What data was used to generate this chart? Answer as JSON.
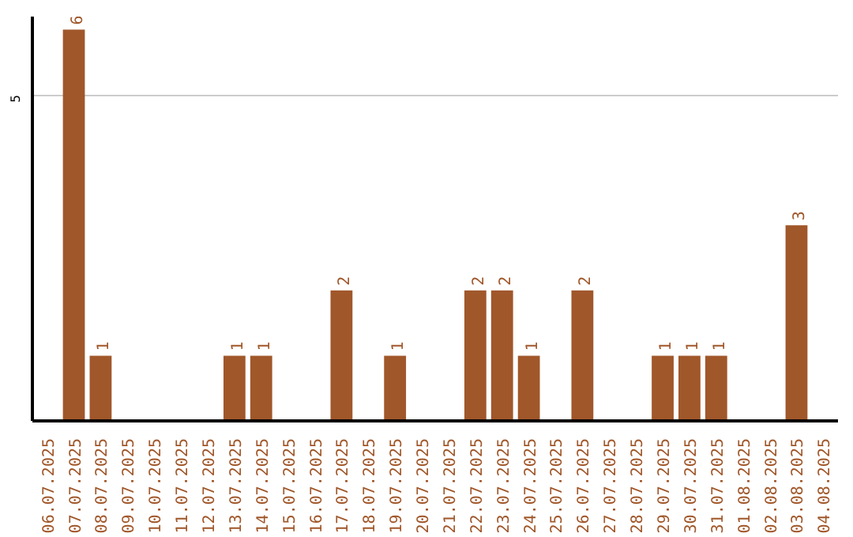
{
  "chart_data": {
    "type": "bar",
    "categories": [
      "06.07.2025",
      "07.07.2025",
      "08.07.2025",
      "09.07.2025",
      "10.07.2025",
      "11.07.2025",
      "12.07.2025",
      "13.07.2025",
      "14.07.2025",
      "15.07.2025",
      "16.07.2025",
      "17.07.2025",
      "18.07.2025",
      "19.07.2025",
      "20.07.2025",
      "21.07.2025",
      "22.07.2025",
      "23.07.2025",
      "24.07.2025",
      "25.07.2025",
      "26.07.2025",
      "27.07.2025",
      "28.07.2025",
      "29.07.2025",
      "30.07.2025",
      "31.07.2025",
      "01.08.2025",
      "02.08.2025",
      "03.08.2025",
      "04.08.2025"
    ],
    "values": [
      0,
      6,
      1,
      0,
      0,
      0,
      0,
      1,
      1,
      0,
      0,
      2,
      0,
      1,
      0,
      0,
      2,
      2,
      1,
      0,
      2,
      0,
      0,
      1,
      1,
      1,
      0,
      0,
      3,
      0
    ],
    "value_labels": [
      null,
      "6",
      "1",
      null,
      null,
      null,
      null,
      "1",
      "1",
      null,
      null,
      "2",
      null,
      "1",
      null,
      null,
      "2",
      "2",
      "1",
      null,
      "2",
      null,
      null,
      "1",
      "1",
      "1",
      null,
      null,
      "3",
      null
    ],
    "color": "#a0572a",
    "ylim": [
      0,
      6.2
    ],
    "yticks": [
      5
    ],
    "grid": "y"
  }
}
